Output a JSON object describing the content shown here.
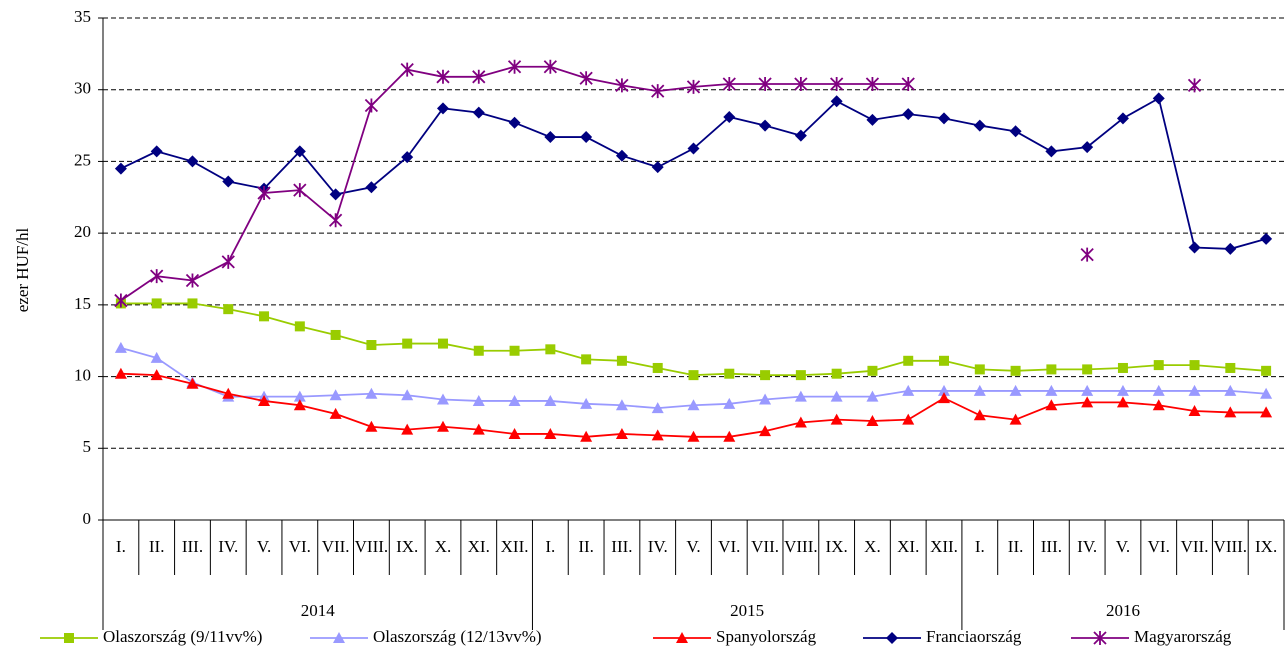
{
  "chart_data": {
    "type": "line",
    "y_label": "ezer HUF/hl",
    "ylim": [
      0,
      35
    ],
    "yticks": [
      0,
      5,
      10,
      15,
      20,
      25,
      30,
      35
    ],
    "grid": true,
    "legend": "bottom",
    "category_groups": [
      {
        "label": "2014",
        "categories": [
          "I.",
          "II.",
          "III.",
          "IV.",
          "V.",
          "VI.",
          "VII.",
          "VIII.",
          "IX.",
          "X.",
          "XI.",
          "XII."
        ]
      },
      {
        "label": "2015",
        "categories": [
          "I.",
          "II.",
          "III.",
          "IV.",
          "V.",
          "VI.",
          "VII.",
          "VIII.",
          "IX.",
          "X.",
          "XI.",
          "XII."
        ]
      },
      {
        "label": "2016",
        "categories": [
          "I.",
          "II.",
          "III.",
          "IV.",
          "V.",
          "VI.",
          "VII.",
          "VIII.",
          "IX."
        ]
      }
    ],
    "series": [
      {
        "name": "Olaszország (9/11vv%)",
        "color": "#99cc00",
        "marker": "square",
        "values": [
          15.1,
          15.1,
          15.1,
          14.7,
          14.2,
          13.5,
          12.9,
          12.2,
          12.3,
          12.3,
          11.8,
          11.8,
          11.9,
          11.2,
          11.1,
          10.6,
          10.1,
          10.2,
          10.1,
          10.1,
          10.2,
          10.4,
          11.1,
          11.1,
          10.5,
          10.4,
          10.5,
          10.5,
          10.6,
          10.8,
          10.8,
          10.6,
          10.4
        ]
      },
      {
        "name": "Olaszország (12/13vv%)",
        "color": "#9999ff",
        "marker": "triangle",
        "values": [
          12.0,
          11.3,
          9.6,
          8.6,
          8.6,
          8.6,
          8.7,
          8.8,
          8.7,
          8.4,
          8.3,
          8.3,
          8.3,
          8.1,
          8.0,
          7.8,
          8.0,
          8.1,
          8.4,
          8.6,
          8.6,
          8.6,
          9.0,
          9.0,
          9.0,
          9.0,
          9.0,
          9.0,
          9.0,
          9.0,
          9.0,
          9.0,
          8.8
        ]
      },
      {
        "name": "Spanyolország",
        "color": "#ff0000",
        "marker": "triangle",
        "values": [
          10.2,
          10.1,
          9.5,
          8.8,
          8.3,
          8.0,
          7.4,
          6.5,
          6.3,
          6.5,
          6.3,
          6.0,
          6.0,
          5.8,
          6.0,
          5.9,
          5.8,
          5.8,
          6.2,
          6.8,
          7.0,
          6.9,
          7.0,
          8.5,
          7.3,
          7.0,
          8.0,
          8.2,
          8.2,
          8.0,
          7.6,
          7.5,
          7.5
        ]
      },
      {
        "name": "Franciaország",
        "color": "#000080",
        "marker": "diamond",
        "values": [
          24.5,
          25.7,
          25.0,
          23.6,
          23.1,
          25.7,
          22.7,
          23.2,
          25.3,
          28.7,
          28.4,
          27.7,
          26.7,
          26.7,
          25.4,
          24.6,
          25.9,
          28.1,
          27.5,
          26.8,
          29.2,
          27.9,
          28.3,
          28.0,
          27.5,
          27.1,
          25.7,
          26.0,
          28.0,
          29.4,
          19.0,
          18.9,
          19.6
        ]
      },
      {
        "name": "Magyarország",
        "color": "#800080",
        "marker": "star",
        "values": [
          15.3,
          17.0,
          16.7,
          18.0,
          22.8,
          23.0,
          20.9,
          28.9,
          31.4,
          30.9,
          30.9,
          31.6,
          31.6,
          30.8,
          30.3,
          29.9,
          30.2,
          30.4,
          30.4,
          30.4,
          30.4,
          30.4,
          30.4,
          null,
          null,
          null,
          null,
          18.5,
          null,
          null,
          30.3,
          null,
          null
        ]
      }
    ]
  }
}
